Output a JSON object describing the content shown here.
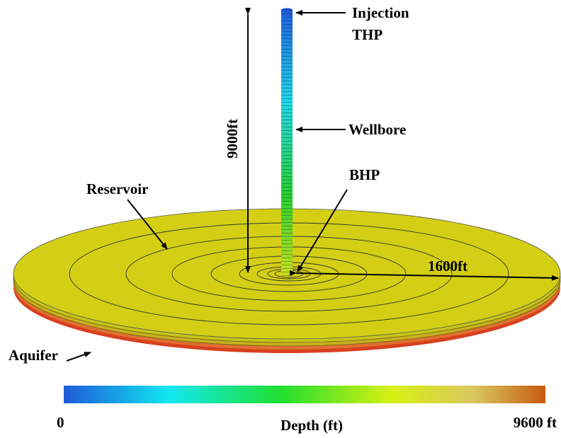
{
  "labels": {
    "injection": "Injection",
    "thp": "THP",
    "wellbore": "Wellbore",
    "bhp": "BHP",
    "reservoir": "Reservoir",
    "aquifer": "Aquifer"
  },
  "dimensions": {
    "height": "9000ft",
    "radius": "1600ft"
  },
  "colorbar": {
    "min_label": "0",
    "title": "Depth (ft)",
    "max_label": "9600 ft"
  }
}
